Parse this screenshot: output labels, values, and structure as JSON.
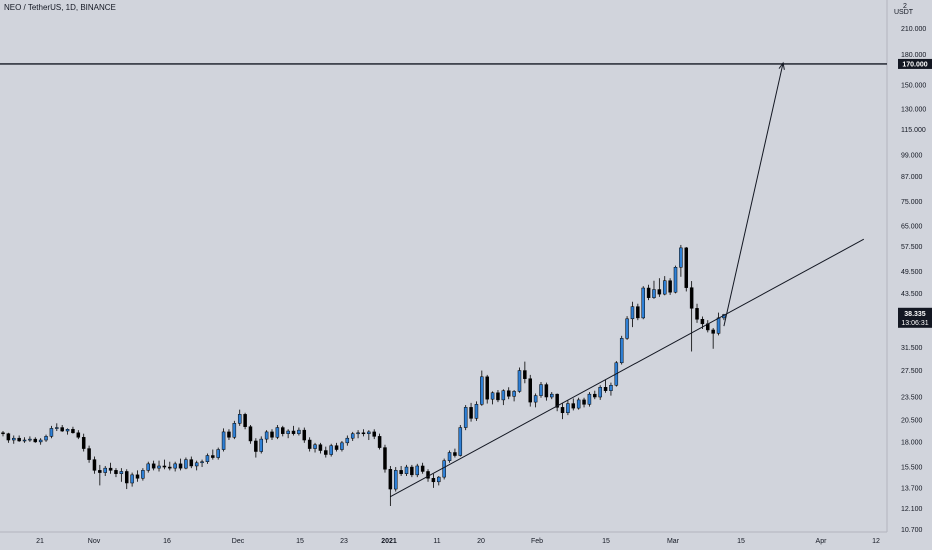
{
  "title": "NEO / TetherUS, 1D, BINANCE",
  "colors": {
    "background": "#d1d4dc",
    "up": "#2f80d6",
    "down": "#000000",
    "axis_text": "#131722",
    "line": "#131722"
  },
  "price_axis": {
    "unit": "USDT",
    "scale": "log",
    "top_tick": "2",
    "labels": [
      "210.000",
      "180.000",
      "150.000",
      "130.000",
      "115.000",
      "99.000",
      "87.000",
      "75.000",
      "65.000",
      "57.500",
      "49.500",
      "43.500",
      "38.335",
      "31.500",
      "27.500",
      "23.500",
      "20.500",
      "18.000",
      "15.500",
      "13.700",
      "12.100",
      "10.700"
    ]
  },
  "price_badges": {
    "resistance": "170.000",
    "last": "38.335",
    "countdown": "13:06:31"
  },
  "time_axis": {
    "labels": [
      "21",
      "Nov",
      "16",
      "Dec",
      "15",
      "23",
      "2021",
      "11",
      "20",
      "Feb",
      "15",
      "Mar",
      "15",
      "Apr",
      "12"
    ]
  },
  "chart_data": {
    "type": "candlestick",
    "title": "NEO / TetherUS, 1D, BINANCE",
    "y_scale": "log",
    "ylim": [
      10.7,
      225
    ],
    "ohlc": [
      [
        19.0,
        19.2,
        18.6,
        18.9
      ],
      [
        18.9,
        19.0,
        17.9,
        18.2
      ],
      [
        18.2,
        18.7,
        17.8,
        18.4
      ],
      [
        18.4,
        18.7,
        18.0,
        18.1
      ],
      [
        18.1,
        18.5,
        17.9,
        18.2
      ],
      [
        18.2,
        18.6,
        18.0,
        18.3
      ],
      [
        18.3,
        18.5,
        17.9,
        18.0
      ],
      [
        18.0,
        18.4,
        17.7,
        18.2
      ],
      [
        18.2,
        18.8,
        18.0,
        18.6
      ],
      [
        18.6,
        19.8,
        18.4,
        19.5
      ],
      [
        19.5,
        20.1,
        19.2,
        19.6
      ],
      [
        19.6,
        19.9,
        19.1,
        19.2
      ],
      [
        19.2,
        19.5,
        18.8,
        19.4
      ],
      [
        19.4,
        19.7,
        18.9,
        19.0
      ],
      [
        19.0,
        19.3,
        18.3,
        18.5
      ],
      [
        18.5,
        18.9,
        17.0,
        17.3
      ],
      [
        17.3,
        17.6,
        15.9,
        16.2
      ],
      [
        16.2,
        16.5,
        14.9,
        15.2
      ],
      [
        15.2,
        15.7,
        13.9,
        15.0
      ],
      [
        15.0,
        15.6,
        14.7,
        15.4
      ],
      [
        15.4,
        15.9,
        14.9,
        15.2
      ],
      [
        15.2,
        15.4,
        14.6,
        14.9
      ],
      [
        14.9,
        15.4,
        14.2,
        15.1
      ],
      [
        15.1,
        15.3,
        13.6,
        14.1
      ],
      [
        14.1,
        15.0,
        13.8,
        14.8
      ],
      [
        14.8,
        15.2,
        14.2,
        14.5
      ],
      [
        14.5,
        15.4,
        14.3,
        15.2
      ],
      [
        15.2,
        16.0,
        15.0,
        15.8
      ],
      [
        15.8,
        16.1,
        15.2,
        15.4
      ],
      [
        15.4,
        16.1,
        15.1,
        15.6
      ],
      [
        15.6,
        16.2,
        15.3,
        15.5
      ],
      [
        15.5,
        16.0,
        15.2,
        15.4
      ],
      [
        15.4,
        16.0,
        15.1,
        15.8
      ],
      [
        15.8,
        16.3,
        15.2,
        15.4
      ],
      [
        15.4,
        16.4,
        15.3,
        16.2
      ],
      [
        16.2,
        16.5,
        15.4,
        15.6
      ],
      [
        15.6,
        16.1,
        15.2,
        15.9
      ],
      [
        15.9,
        16.2,
        15.5,
        16.0
      ],
      [
        16.0,
        16.8,
        15.8,
        16.6
      ],
      [
        16.6,
        17.2,
        16.2,
        16.4
      ],
      [
        16.4,
        17.4,
        16.2,
        17.2
      ],
      [
        17.2,
        19.5,
        17.0,
        19.1
      ],
      [
        19.1,
        19.4,
        18.2,
        18.5
      ],
      [
        18.5,
        20.4,
        18.3,
        20.1
      ],
      [
        20.1,
        21.8,
        19.8,
        21.2
      ],
      [
        21.2,
        21.4,
        19.4,
        19.7
      ],
      [
        19.7,
        19.9,
        17.8,
        18.1
      ],
      [
        18.1,
        18.4,
        16.4,
        17.0
      ],
      [
        17.0,
        18.6,
        16.8,
        18.3
      ],
      [
        18.3,
        19.3,
        17.9,
        19.1
      ],
      [
        19.1,
        19.4,
        18.2,
        18.5
      ],
      [
        18.5,
        19.9,
        18.3,
        19.6
      ],
      [
        19.6,
        19.8,
        18.6,
        18.9
      ],
      [
        18.9,
        19.4,
        18.4,
        19.2
      ],
      [
        19.2,
        19.8,
        18.7,
        18.9
      ],
      [
        18.9,
        19.6,
        18.7,
        19.3
      ],
      [
        19.3,
        19.6,
        17.9,
        18.2
      ],
      [
        18.2,
        18.5,
        17.0,
        17.3
      ],
      [
        17.3,
        17.9,
        16.9,
        17.7
      ],
      [
        17.7,
        17.9,
        16.8,
        17.1
      ],
      [
        17.1,
        17.5,
        16.4,
        16.7
      ],
      [
        16.7,
        17.8,
        16.5,
        17.6
      ],
      [
        17.6,
        17.9,
        17.0,
        17.2
      ],
      [
        17.2,
        18.1,
        17.0,
        17.9
      ],
      [
        17.9,
        18.7,
        17.6,
        18.4
      ],
      [
        18.4,
        19.1,
        18.1,
        18.9
      ],
      [
        18.9,
        19.3,
        18.4,
        19.0
      ],
      [
        19.0,
        19.4,
        18.6,
        18.9
      ],
      [
        18.9,
        19.3,
        18.2,
        19.1
      ],
      [
        19.1,
        19.4,
        18.3,
        18.6
      ],
      [
        18.6,
        18.9,
        17.2,
        17.4
      ],
      [
        17.4,
        17.7,
        15.0,
        15.3
      ],
      [
        15.3,
        15.6,
        12.3,
        13.6
      ],
      [
        13.6,
        15.5,
        13.4,
        15.2
      ],
      [
        15.2,
        15.6,
        14.7,
        14.9
      ],
      [
        14.9,
        15.7,
        14.7,
        15.5
      ],
      [
        15.5,
        15.7,
        14.6,
        14.8
      ],
      [
        14.8,
        15.8,
        14.6,
        15.6
      ],
      [
        15.6,
        15.9,
        14.9,
        15.1
      ],
      [
        15.1,
        15.3,
        14.2,
        14.5
      ],
      [
        14.5,
        14.9,
        13.7,
        14.2
      ],
      [
        14.2,
        14.7,
        13.9,
        14.6
      ],
      [
        14.6,
        16.3,
        14.4,
        16.1
      ],
      [
        16.1,
        17.1,
        15.9,
        16.9
      ],
      [
        16.9,
        17.3,
        16.4,
        16.6
      ],
      [
        16.6,
        19.9,
        16.5,
        19.6
      ],
      [
        19.6,
        22.4,
        19.3,
        22.1
      ],
      [
        22.1,
        22.7,
        20.3,
        20.7
      ],
      [
        20.7,
        22.9,
        20.4,
        22.5
      ],
      [
        22.5,
        27.5,
        22.3,
        26.5
      ],
      [
        26.5,
        26.8,
        22.6,
        23.2
      ],
      [
        23.2,
        24.3,
        22.5,
        24.1
      ],
      [
        24.1,
        24.5,
        22.8,
        23.1
      ],
      [
        23.1,
        24.6,
        22.4,
        24.4
      ],
      [
        24.4,
        24.9,
        23.2,
        23.6
      ],
      [
        23.6,
        24.5,
        22.9,
        24.3
      ],
      [
        24.3,
        28.0,
        24.1,
        27.5
      ],
      [
        27.5,
        29.0,
        25.5,
        26.2
      ],
      [
        26.2,
        26.8,
        22.2,
        22.8
      ],
      [
        22.8,
        24.0,
        22.1,
        23.7
      ],
      [
        23.7,
        25.7,
        23.4,
        25.3
      ],
      [
        25.3,
        25.6,
        23.0,
        23.5
      ],
      [
        23.5,
        24.2,
        23.2,
        23.9
      ],
      [
        23.9,
        24.0,
        21.6,
        22.1
      ],
      [
        22.1,
        22.7,
        20.6,
        21.4
      ],
      [
        21.4,
        23.0,
        21.1,
        22.6
      ],
      [
        22.6,
        23.3,
        21.7,
        22.0
      ],
      [
        22.0,
        23.4,
        21.8,
        23.1
      ],
      [
        23.1,
        23.4,
        22.1,
        22.5
      ],
      [
        22.5,
        24.2,
        22.2,
        23.9
      ],
      [
        23.9,
        24.4,
        23.2,
        23.5
      ],
      [
        23.5,
        25.2,
        23.1,
        24.9
      ],
      [
        24.9,
        26.0,
        24.1,
        24.4
      ],
      [
        24.4,
        25.6,
        23.7,
        25.2
      ],
      [
        25.2,
        29.1,
        25.0,
        28.8
      ],
      [
        28.8,
        33.8,
        28.5,
        33.3
      ],
      [
        33.3,
        38.0,
        33.0,
        37.4
      ],
      [
        37.4,
        41.4,
        35.6,
        40.2
      ],
      [
        40.2,
        40.9,
        37.1,
        37.6
      ],
      [
        37.6,
        45.4,
        37.3,
        44.9
      ],
      [
        44.9,
        45.8,
        41.8,
        42.4
      ],
      [
        42.4,
        46.9,
        42.1,
        44.5
      ],
      [
        44.5,
        47.6,
        42.6,
        43.3
      ],
      [
        43.3,
        48.2,
        43.0,
        46.9
      ],
      [
        46.9,
        47.6,
        43.1,
        43.8
      ],
      [
        43.8,
        51.3,
        43.5,
        50.8
      ],
      [
        50.8,
        58.0,
        48.0,
        57.0
      ],
      [
        57.0,
        57.3,
        44.0,
        45.0
      ],
      [
        45.0,
        46.8,
        30.8,
        39.8
      ],
      [
        39.8,
        40.9,
        36.5,
        37.3
      ],
      [
        37.3,
        37.9,
        35.2,
        36.3
      ],
      [
        36.3,
        37.1,
        34.5,
        35.0
      ],
      [
        35.0,
        35.4,
        31.3,
        34.3
      ],
      [
        34.3,
        38.8,
        33.9,
        37.6
      ],
      [
        37.6,
        38.5,
        37.1,
        38.34
      ]
    ],
    "annotations": [
      {
        "type": "horizontal_line",
        "price": 170.0
      },
      {
        "type": "trend_line",
        "from_bar": 72,
        "from_price": 13.0,
        "to_bar": 160,
        "to_price": 60.0
      },
      {
        "type": "arrow",
        "from_bar": 134,
        "from_price": 35.8,
        "to_bar": 145,
        "to_price": 171.0
      }
    ]
  }
}
